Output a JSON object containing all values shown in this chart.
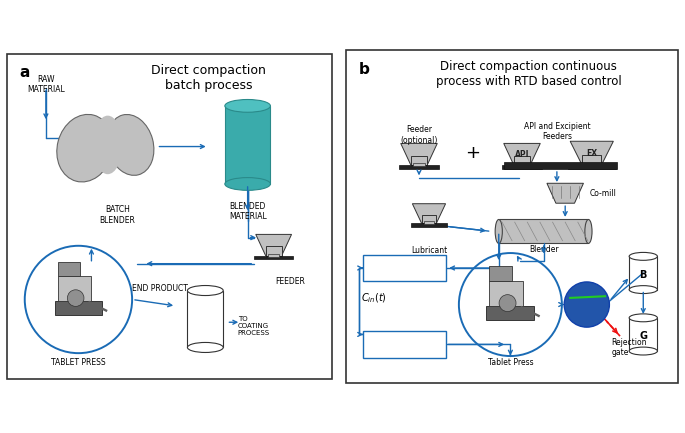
{
  "title_a": "Direct compaction\nbatch process",
  "title_b": "Direct compaction continuous\nprocess with RTD based control",
  "label_a": "a",
  "label_b": "b",
  "arrow_color": "#1A6BB5",
  "teal_color": "#3AABAB",
  "teal_dark": "#2A8A8A",
  "bg_color": "#FFFFFF",
  "text_color": "#000000",
  "gray_light": "#C0C0C0",
  "gray_med": "#909090",
  "gray_dark": "#606060",
  "gray_very_dark": "#404040",
  "blue_circle_color": "#2255AA",
  "red_color": "#EE1111",
  "green_color": "#22CC22",
  "border_color": "#333333",
  "belt_color": "#222222"
}
